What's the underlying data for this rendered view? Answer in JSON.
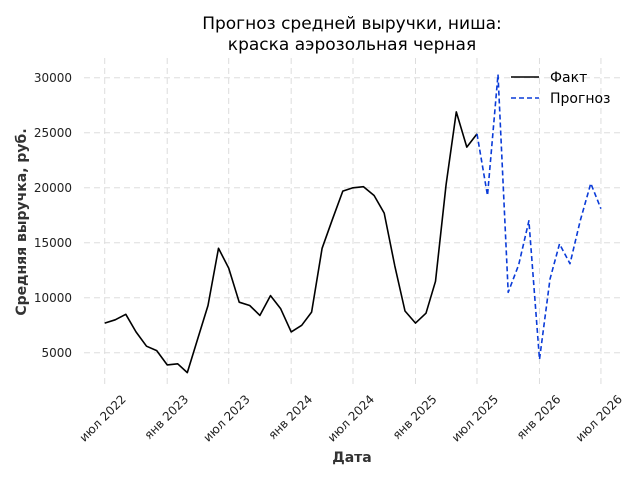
{
  "chart_data": {
    "type": "line",
    "title": [
      "Прогноз средней выручки, ниша:",
      "краска аэрозольная черная"
    ],
    "xlabel": "Дата",
    "ylabel": "Средняя выручка, руб.",
    "ylim": [
      1800,
      31800
    ],
    "yticks": [
      5000,
      10000,
      15000,
      20000,
      25000,
      30000
    ],
    "xticks": [
      {
        "date": "2022-07-01",
        "label": "июл 2022"
      },
      {
        "date": "2023-01-01",
        "label": "янв 2023"
      },
      {
        "date": "2023-07-01",
        "label": "июл 2023"
      },
      {
        "date": "2024-01-01",
        "label": "янв 2024"
      },
      {
        "date": "2024-07-01",
        "label": "июл 2024"
      },
      {
        "date": "2025-01-01",
        "label": "янв 2025"
      },
      {
        "date": "2025-07-01",
        "label": "июл 2025"
      },
      {
        "date": "2026-01-01",
        "label": "янв 2026"
      },
      {
        "date": "2026-07-01",
        "label": "июл 2026"
      }
    ],
    "xlim": [
      "2022-05-01",
      "2026-09-01"
    ],
    "grid": true,
    "legend_position": "top-right",
    "series": [
      {
        "name": "Факт",
        "color": "#000000",
        "style": "solid",
        "x": [
          "2022-07-01",
          "2022-08-01",
          "2022-09-01",
          "2022-10-01",
          "2022-11-01",
          "2022-12-01",
          "2023-01-01",
          "2023-02-01",
          "2023-03-01",
          "2023-04-01",
          "2023-05-01",
          "2023-06-01",
          "2023-07-01",
          "2023-08-01",
          "2023-09-01",
          "2023-10-01",
          "2023-11-01",
          "2023-12-01",
          "2024-01-01",
          "2024-02-01",
          "2024-03-01",
          "2024-04-01",
          "2024-05-01",
          "2024-06-01",
          "2024-07-01",
          "2024-08-01",
          "2024-09-01",
          "2024-10-01",
          "2024-11-01",
          "2024-12-01",
          "2025-01-01",
          "2025-02-01",
          "2025-03-01",
          "2025-04-01",
          "2025-05-01",
          "2025-06-01",
          "2025-07-01"
        ],
        "y": [
          7700,
          8000,
          8500,
          6900,
          5600,
          5200,
          3900,
          4000,
          3200,
          6300,
          9300,
          14500,
          12700,
          9600,
          9300,
          8400,
          10200,
          9000,
          6900,
          7500,
          8700,
          14500,
          17100,
          19700,
          20000,
          20100,
          19300,
          17700,
          12900,
          8800,
          7700,
          8600,
          11500,
          20300,
          26900,
          23700,
          24900
        ]
      },
      {
        "name": "Прогноз",
        "color": "#0a3bd8",
        "style": "dashed",
        "x": [
          "2025-07-01",
          "2025-08-01",
          "2025-09-01",
          "2025-10-01",
          "2025-11-01",
          "2025-12-01",
          "2026-01-01",
          "2026-02-01",
          "2026-03-01",
          "2026-04-01",
          "2026-05-01",
          "2026-06-01",
          "2026-07-01"
        ],
        "y": [
          24900,
          19300,
          30300,
          10500,
          13000,
          17000,
          4400,
          11700,
          14900,
          13100,
          17000,
          20400,
          18100
        ]
      }
    ]
  }
}
